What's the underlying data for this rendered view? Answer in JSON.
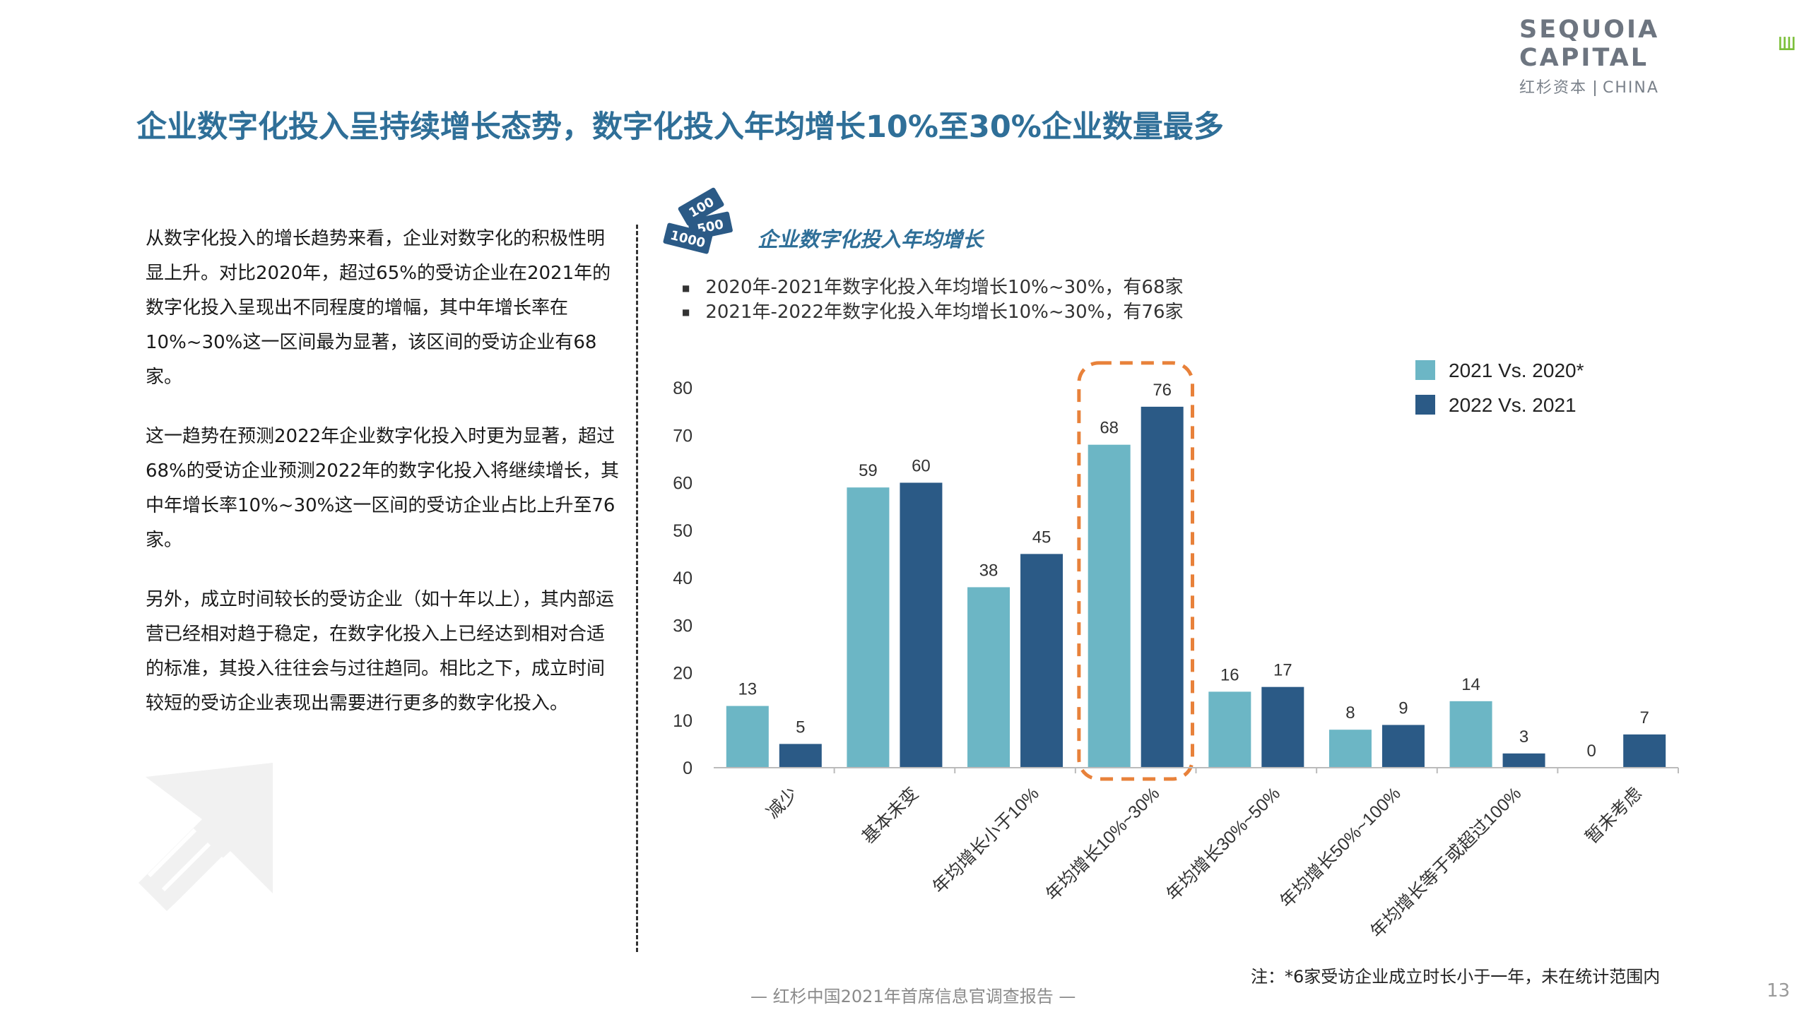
{
  "logo": {
    "brand": "SEQUOIA CAPITAL",
    "sub_cn": "红杉资本",
    "sub_en": "CHINA"
  },
  "title": "企业数字化投入呈持续增长态势，数字化投入年均增长10%至30%企业数量最多",
  "paragraphs": [
    "从数字化投入的增长趋势来看，企业对数字化的积极性明显上升。对比2020年，超过65%的受访企业在2021年的数字化投入呈现出不同程度的增幅，其中年增长率在10%~30%这一区间最为显著，该区间的受访企业有68家。",
    "这一趋势在预测2022年企业数字化投入时更为显著，超过68%的受访企业预测2022年的数字化投入将继续增长，其中年增长率10%~30%这一区间的受访企业占比上升至76家。",
    "另外，成立时间较长的受访企业（如十年以上），其内部运营已经相对趋于稳定，在数字化投入上已经达到相对合适的标准，其投入往往会与过往趋同。相比之下，成立时间较短的受访企业表现出需要进行更多的数字化投入。"
  ],
  "badge": {
    "t1": "100",
    "t2": "500",
    "t3": "1000"
  },
  "chart_title": "企业数字化投入年均增长",
  "bullets": [
    "2020年-2021年数字化投入年均增长10%~30%，有68家",
    "2021年-2022年数字化投入年均增长10%~30%，有76家"
  ],
  "chart_data": {
    "type": "bar",
    "categories": [
      "减少",
      "基本未变",
      "年均增长小于10%",
      "年均增长10%~30%",
      "年均增长30%~50%",
      "年均增长50%~100%",
      "年均增长等于或超过100%",
      "暂未考虑"
    ],
    "series": [
      {
        "name": "2021 Vs. 2020*",
        "color": "#6cb6c5",
        "values": [
          13,
          59,
          38,
          68,
          16,
          8,
          14,
          0
        ]
      },
      {
        "name": "2022 Vs. 2021",
        "color": "#2b5a86",
        "values": [
          5,
          60,
          45,
          76,
          17,
          9,
          3,
          7
        ]
      }
    ],
    "ylim": [
      0,
      80
    ],
    "yticks": [
      0,
      10,
      20,
      30,
      40,
      50,
      60,
      70,
      80
    ],
    "highlight_category": "年均增长10%~30%",
    "highlight_color": "#e8813a",
    "legend_position": "top-right",
    "grid": false
  },
  "footnote": "注：*6家受访企业成立时长小于一年，未在统计范围内",
  "footer": "— 红杉中国2021年首席信息官调查报告 —",
  "page_number": "13"
}
